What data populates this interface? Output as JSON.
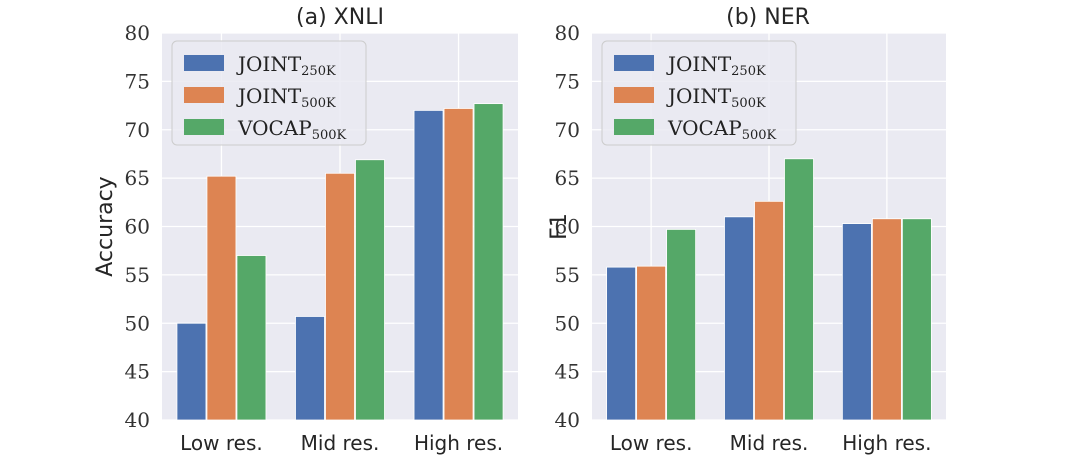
{
  "chart_data": [
    {
      "type": "bar",
      "title": "(a) XNLI",
      "ylabel": "Accuracy",
      "xlabel": "",
      "categories": [
        "Low res.",
        "Mid res.",
        "High res."
      ],
      "ylim": [
        40,
        80
      ],
      "yticks": [
        40,
        45,
        50,
        55,
        60,
        65,
        70,
        75,
        80
      ],
      "grid": true,
      "legend_position": "top-left",
      "series": [
        {
          "name": "JOINT",
          "subscript": "250K",
          "color": "#4c72b0",
          "values": [
            50.0,
            50.7,
            72.0
          ]
        },
        {
          "name": "JOINT",
          "subscript": "500K",
          "color": "#dd8452",
          "values": [
            65.2,
            65.5,
            72.2
          ]
        },
        {
          "name": "VOCAP",
          "subscript": "500K",
          "color": "#55a868",
          "values": [
            57.0,
            66.9,
            72.7
          ]
        }
      ]
    },
    {
      "type": "bar",
      "title": "(b) NER",
      "ylabel": "F1",
      "xlabel": "",
      "categories": [
        "Low res.",
        "Mid res.",
        "High res."
      ],
      "ylim": [
        40,
        80
      ],
      "yticks": [
        40,
        45,
        50,
        55,
        60,
        65,
        70,
        75,
        80
      ],
      "grid": true,
      "legend_position": "top-left",
      "series": [
        {
          "name": "JOINT",
          "subscript": "250K",
          "color": "#4c72b0",
          "values": [
            55.8,
            61.0,
            60.3
          ]
        },
        {
          "name": "JOINT",
          "subscript": "500K",
          "color": "#dd8452",
          "values": [
            55.9,
            62.6,
            60.8
          ]
        },
        {
          "name": "VOCAP",
          "subscript": "500K",
          "color": "#55a868",
          "values": [
            59.7,
            67.0,
            60.8
          ]
        }
      ]
    }
  ]
}
